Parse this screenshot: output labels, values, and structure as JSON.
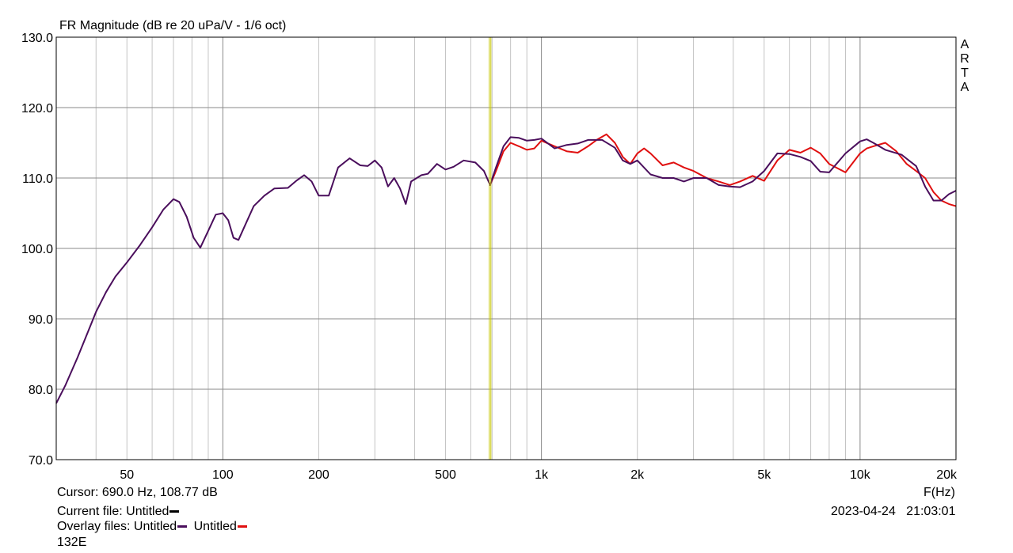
{
  "chart_data": {
    "type": "line",
    "title": "FR Magnitude (dB re 20 uPa/V - 1/6 oct)",
    "xlabel": "F(Hz)",
    "ylabel": "",
    "x_scale": "log",
    "xlim": [
      30,
      20000
    ],
    "ylim": [
      70,
      130
    ],
    "grid": true,
    "y_ticks": [
      "70.0",
      "80.0",
      "90.0",
      "100.0",
      "110.0",
      "120.0",
      "130.0"
    ],
    "x_ticks": [
      {
        "value": 50,
        "label": "50"
      },
      {
        "value": 100,
        "label": "100"
      },
      {
        "value": 200,
        "label": "200"
      },
      {
        "value": 500,
        "label": "500"
      },
      {
        "value": 1000,
        "label": "1k"
      },
      {
        "value": 2000,
        "label": "2k"
      },
      {
        "value": 5000,
        "label": "5k"
      },
      {
        "value": 10000,
        "label": "10k"
      },
      {
        "value": 20000,
        "label": "20k"
      }
    ],
    "cursor": {
      "x": 690,
      "color": "#c8c800"
    },
    "series": [
      {
        "name": "Untitled",
        "color": "#4a0e5c",
        "x": [
          30,
          32,
          35,
          38,
          40,
          43,
          46,
          50,
          55,
          60,
          65,
          70,
          73,
          77,
          81,
          85,
          90,
          95,
          100,
          104,
          108,
          112,
          118,
          125,
          135,
          145,
          160,
          170,
          180,
          190,
          200,
          215,
          230,
          250,
          270,
          285,
          300,
          315,
          330,
          345,
          360,
          375,
          390,
          420,
          440,
          470,
          500,
          530,
          570,
          620,
          660,
          690,
          720,
          760,
          800,
          850,
          900,
          950,
          1000,
          1100,
          1200,
          1300,
          1400,
          1550,
          1700,
          1800,
          1900,
          2000,
          2200,
          2400,
          2600,
          2800,
          3000,
          3300,
          3600,
          3900,
          4200,
          4600,
          5000,
          5500,
          6000,
          6500,
          7000,
          7500,
          8000,
          9000,
          10000,
          10500,
          11000,
          12000,
          13500,
          15000,
          16000,
          17000,
          18000,
          19000,
          20000
        ],
        "values": [
          78.0,
          80.5,
          84.5,
          88.5,
          91.0,
          93.8,
          96.0,
          98.0,
          100.5,
          103.0,
          105.5,
          107.0,
          106.6,
          104.5,
          101.5,
          100.1,
          102.5,
          104.8,
          105.0,
          104.0,
          101.5,
          101.2,
          103.5,
          106.0,
          107.5,
          108.5,
          108.6,
          109.6,
          110.4,
          109.5,
          107.5,
          107.5,
          111.5,
          112.8,
          111.8,
          111.7,
          112.5,
          111.5,
          108.8,
          110.0,
          108.5,
          106.3,
          109.5,
          110.4,
          110.6,
          112.0,
          111.2,
          111.6,
          112.5,
          112.2,
          111.0,
          109.0,
          111.5,
          114.5,
          115.8,
          115.7,
          115.3,
          115.4,
          115.6,
          114.2,
          114.7,
          114.9,
          115.4,
          115.4,
          114.3,
          112.5,
          112.0,
          112.5,
          110.5,
          110.0,
          110.0,
          109.5,
          110.0,
          110.0,
          109.0,
          108.8,
          108.7,
          109.5,
          111.0,
          113.5,
          113.4,
          113.0,
          112.4,
          110.9,
          110.8,
          113.5,
          115.2,
          115.5,
          115.0,
          114.0,
          113.3,
          111.7,
          108.8,
          106.8,
          106.8,
          107.7,
          108.2
        ]
      },
      {
        "name": "Untitled",
        "color": "#e01010",
        "x": [
          690,
          720,
          760,
          800,
          850,
          900,
          950,
          1000,
          1100,
          1200,
          1300,
          1400,
          1500,
          1600,
          1700,
          1800,
          1900,
          2000,
          2100,
          2200,
          2400,
          2600,
          2800,
          3000,
          3300,
          3600,
          3900,
          4200,
          4600,
          5000,
          5500,
          6000,
          6500,
          7000,
          7500,
          8000,
          9000,
          10000,
          10500,
          11000,
          12000,
          13000,
          14000,
          15000,
          16000,
          17000,
          18000,
          19000,
          20000
        ],
        "values": [
          109.0,
          111.0,
          113.8,
          115.0,
          114.5,
          114.0,
          114.2,
          115.3,
          114.5,
          113.8,
          113.6,
          114.5,
          115.5,
          116.2,
          115.0,
          113.0,
          112.0,
          113.5,
          114.2,
          113.5,
          111.8,
          112.2,
          111.5,
          111.0,
          110.0,
          109.5,
          109.0,
          109.5,
          110.3,
          109.6,
          112.5,
          114.0,
          113.6,
          114.3,
          113.5,
          112.0,
          110.8,
          113.5,
          114.2,
          114.5,
          115.0,
          113.8,
          112.0,
          111.0,
          110.0,
          108.0,
          106.8,
          106.3,
          106.0
        ]
      }
    ]
  },
  "footer": {
    "cursor_readout": "Cursor: 690.0 Hz, 108.77 dB",
    "current_file_label": "Current file: Untitled",
    "overlay_label": "Overlay files: Untitled",
    "overlay_second": "Untitled",
    "note": "132E",
    "datetime": "2023-04-24   21:03:01"
  },
  "side_logo": [
    "A",
    "R",
    "T",
    "A"
  ]
}
